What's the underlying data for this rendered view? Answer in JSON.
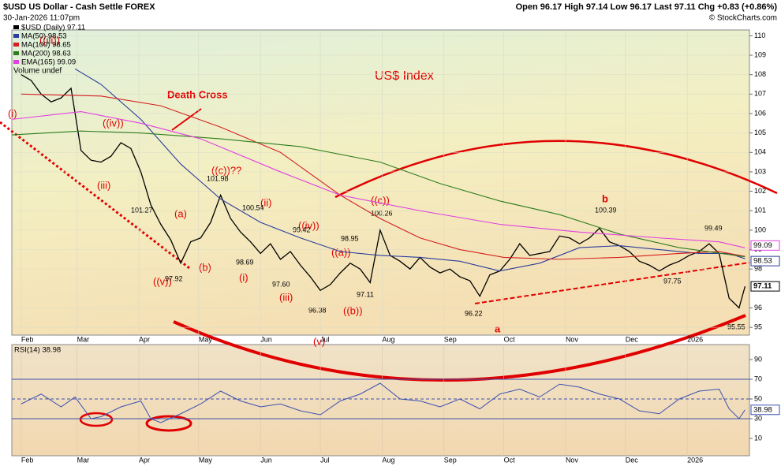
{
  "chart_data": {
    "type": "line",
    "title": "$USD US Dollar - Cash Settle FOREX",
    "subtitle": "30-Jan-2026 11:07pm",
    "quote": "Open 96.17 High 97.14 Low 96.17 Last 97.11 Chg +0.83 (+0.86%)",
    "credit": "© StockCharts.com",
    "chart_label": "US$ Index",
    "legend_extra": "Volume undef",
    "x": [
      0,
      5,
      10,
      15,
      20,
      25,
      30,
      35,
      40,
      45,
      50,
      55,
      60,
      65,
      70,
      75,
      80,
      85,
      90,
      95,
      100,
      105,
      110,
      115,
      120,
      125,
      130,
      135,
      140,
      145,
      150,
      155,
      160,
      165,
      170,
      175,
      180,
      185,
      190,
      195,
      200,
      205,
      210,
      215,
      220,
      225,
      230,
      235,
      240,
      245,
      250,
      255,
      260,
      265,
      270,
      275,
      280,
      285,
      290,
      295,
      300,
      305,
      310,
      315,
      320,
      325,
      330,
      335,
      340,
      345,
      350,
      355,
      360,
      363
    ],
    "series": [
      {
        "name": "$USD (Daily) 97.11",
        "color": "#000000",
        "x": null,
        "values": [
          108.0,
          107.7,
          107.0,
          106.6,
          106.8,
          107.3,
          104.1,
          103.6,
          103.5,
          103.8,
          104.5,
          104.2,
          103.0,
          101.3,
          100.3,
          99.5,
          98.3,
          99.4,
          99.6,
          100.4,
          101.8,
          100.6,
          99.9,
          99.4,
          98.8,
          99.3,
          98.5,
          98.9,
          98.2,
          97.6,
          96.9,
          97.2,
          97.8,
          98.3,
          98.0,
          97.3,
          100.0,
          98.7,
          98.4,
          98.0,
          98.6,
          98.1,
          97.8,
          98.0,
          97.6,
          97.4,
          96.6,
          97.7,
          97.9,
          98.5,
          99.3,
          98.7,
          98.8,
          98.9,
          99.7,
          99.6,
          99.3,
          99.6,
          100.1,
          99.4,
          99.2,
          98.9,
          98.4,
          98.2,
          97.9,
          98.2,
          98.4,
          98.7,
          98.9,
          99.3,
          98.8,
          96.5,
          96.0,
          97.11
        ]
      },
      {
        "name": "MA(50) 98.53",
        "color": "#2a3c9c",
        "x": [
          27,
          40,
          60,
          80,
          100,
          120,
          140,
          160,
          180,
          200,
          220,
          240,
          260,
          280,
          300,
          320,
          340,
          355,
          363
        ],
        "values": [
          108.3,
          107.5,
          105.7,
          103.4,
          101.6,
          100.4,
          99.6,
          98.9,
          98.7,
          98.6,
          98.4,
          97.9,
          98.3,
          99.1,
          99.2,
          99.0,
          98.8,
          98.8,
          98.53
        ]
      },
      {
        "name": "MA(100) 98.65",
        "color": "#d42020",
        "x": [
          0,
          40,
          70,
          100,
          130,
          160,
          180,
          200,
          220,
          242,
          270,
          300,
          330,
          350,
          363
        ],
        "values": [
          107.0,
          106.9,
          106.4,
          105.3,
          104.0,
          101.8,
          100.6,
          99.6,
          99.0,
          98.6,
          98.5,
          98.6,
          98.8,
          98.9,
          98.65
        ]
      },
      {
        "name": "MA(200) 98.63",
        "color": "#2e7d1e",
        "x": [
          -4.7,
          30,
          60,
          100,
          140,
          180,
          210,
          240,
          270,
          300,
          330,
          363
        ],
        "values": [
          104.9,
          105.1,
          105.0,
          104.7,
          104.3,
          103.5,
          102.4,
          101.5,
          100.8,
          99.8,
          99.1,
          98.63
        ]
      },
      {
        "name": "EMA(165) 99.09",
        "color": "#e040e0",
        "x": [
          -4.7,
          30,
          60,
          90,
          130,
          160,
          200,
          240,
          280,
          320,
          350,
          363
        ],
        "values": [
          105.7,
          106.1,
          105.5,
          104.7,
          103.0,
          101.8,
          101.0,
          100.3,
          99.9,
          99.6,
          99.4,
          99.09
        ]
      }
    ],
    "xlim": [
      -4.7,
      365.2
    ],
    "xticks": [
      {
        "value": 0,
        "label": "Feb"
      },
      {
        "value": 28,
        "label": "Mar"
      },
      {
        "value": 59,
        "label": "Apr"
      },
      {
        "value": 89,
        "label": "May"
      },
      {
        "value": 120,
        "label": "Jun"
      },
      {
        "value": 150,
        "label": "Jul"
      },
      {
        "value": 181,
        "label": "Aug"
      },
      {
        "value": 212,
        "label": "Sep"
      },
      {
        "value": 242,
        "label": "Oct"
      },
      {
        "value": 273,
        "label": "Nov"
      },
      {
        "value": 303,
        "label": "Dec"
      },
      {
        "value": 334,
        "label": "2026"
      }
    ],
    "ylim": [
      94.6,
      110.3
    ],
    "yticks": [
      95,
      96,
      98,
      99,
      100,
      101,
      102,
      103,
      104,
      105,
      106,
      107,
      108,
      109,
      110
    ],
    "price_tags": [
      {
        "value": 99.09,
        "label": "99.09",
        "color": "#e040e0"
      },
      {
        "value": 98.53,
        "label": "98.53",
        "color": "#2a3c9c"
      },
      {
        "value": 97.11,
        "label": "97.11",
        "color": "#000000"
      }
    ],
    "grid": true,
    "annotations": [
      "Death Cross",
      "(i)",
      "((iii))",
      "((iv))",
      "(iii)",
      "((v))",
      "(a)",
      "(b)",
      "((c))??",
      "(i)",
      "(ii)",
      "((iv))",
      "(iii)",
      "((a))",
      "((b))",
      "((c))",
      "(v)",
      "a",
      "b"
    ],
    "price_labels": [
      "101.27",
      "101.98",
      "100.54",
      "99.42",
      "98.95",
      "100.26",
      "97.92",
      "98.69",
      "97.60",
      "96.38",
      "97.11",
      "96.22",
      "100.39",
      "99.49",
      "97.75",
      "95.55"
    ],
    "rsi": {
      "name": "RSI(14) 38.98",
      "color": "#3a4fb0",
      "x": [
        0,
        10,
        20,
        27,
        35,
        40,
        50,
        60,
        65,
        70,
        80,
        90,
        100,
        110,
        120,
        130,
        140,
        150,
        160,
        170,
        180,
        190,
        200,
        210,
        220,
        230,
        240,
        250,
        260,
        270,
        280,
        290,
        300,
        310,
        320,
        330,
        340,
        350,
        355,
        360,
        363
      ],
      "values": [
        45,
        55,
        42,
        52,
        30,
        32,
        42,
        48,
        30,
        26,
        35,
        45,
        58,
        48,
        42,
        45,
        38,
        34,
        48,
        55,
        66,
        50,
        48,
        42,
        50,
        40,
        55,
        60,
        52,
        65,
        62,
        55,
        50,
        38,
        35,
        50,
        58,
        60,
        40,
        30,
        38.98
      ],
      "tag": {
        "value": 38.98,
        "label": "38.98"
      },
      "ylim": [
        -7.6,
        105.2
      ],
      "yticks": [
        10,
        30,
        50,
        70,
        90
      ],
      "levels": [
        30,
        50,
        70
      ]
    }
  }
}
